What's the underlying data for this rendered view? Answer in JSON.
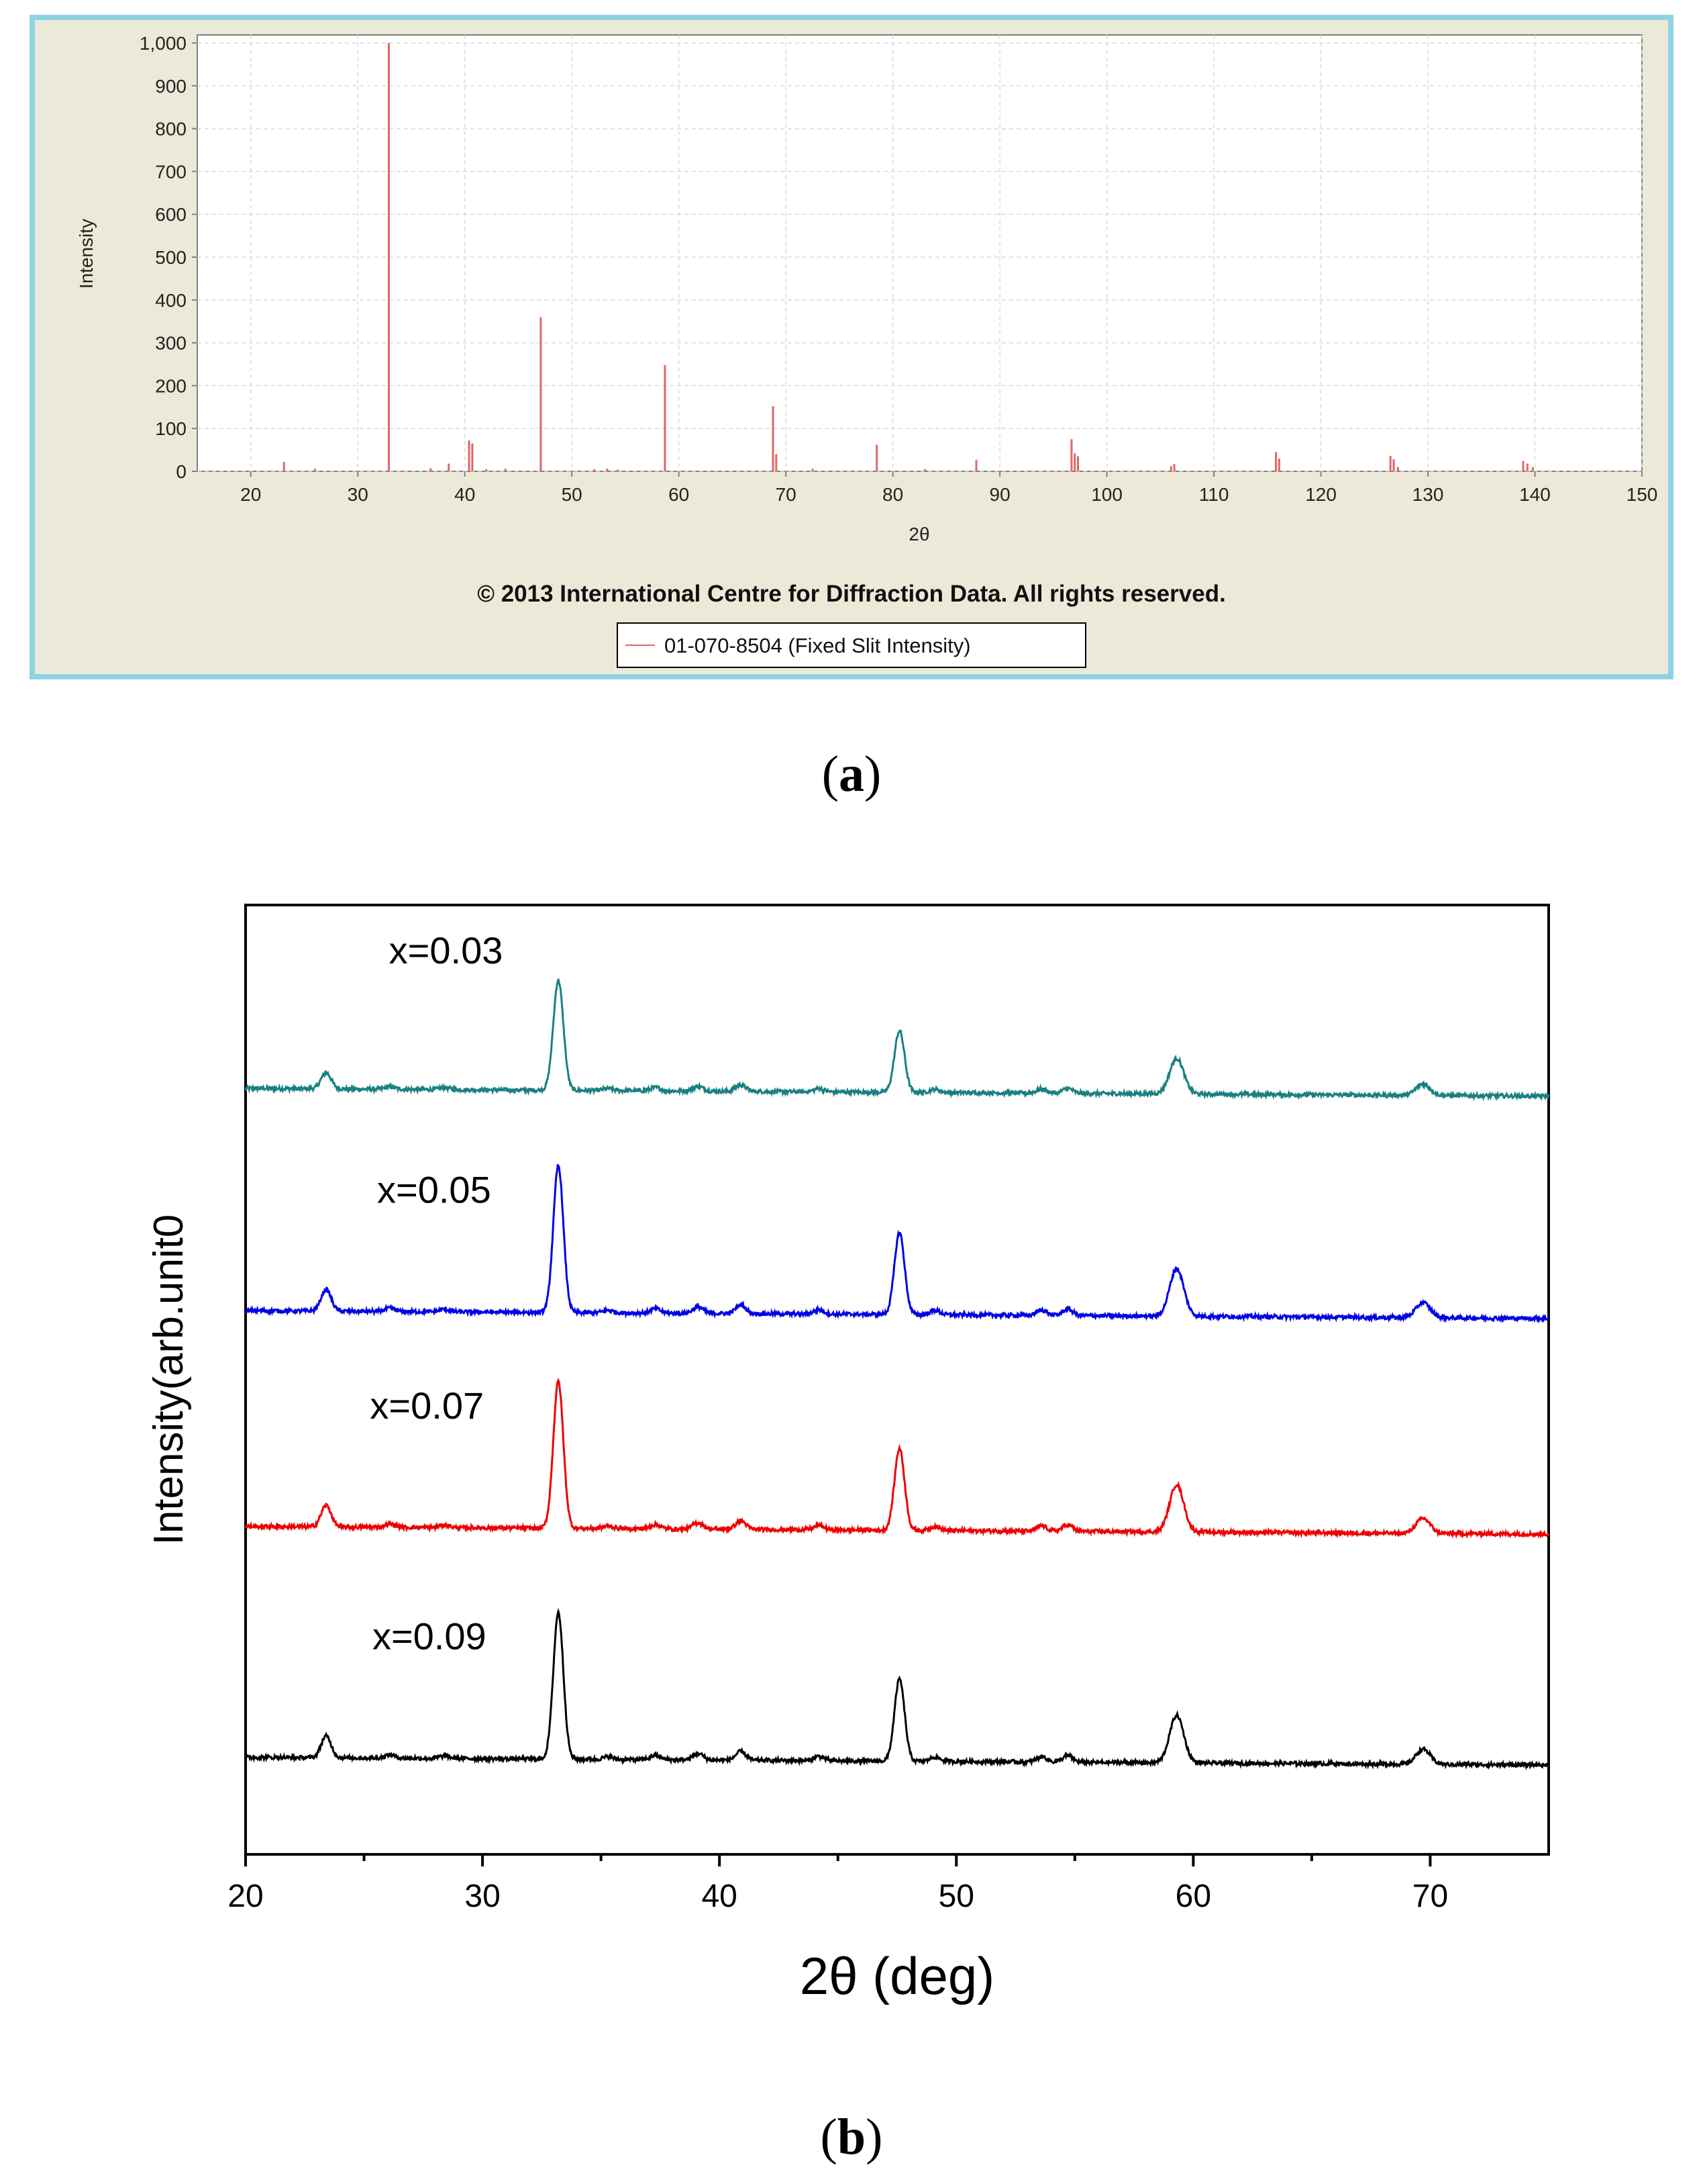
{
  "captions": {
    "a": "a",
    "b": "b"
  },
  "chart_data": [
    {
      "type": "bar",
      "panel": "a",
      "xlabel": "2θ",
      "ylabel": "Intensity",
      "xlim": [
        15,
        150
      ],
      "ylim": [
        0,
        1000
      ],
      "xticks": [
        20,
        30,
        40,
        50,
        60,
        70,
        80,
        90,
        100,
        110,
        120,
        130,
        140,
        150
      ],
      "yticks": [
        0,
        100,
        200,
        300,
        400,
        500,
        600,
        700,
        800,
        900,
        1000
      ],
      "ytick_labels": [
        "0",
        "100",
        "200",
        "300",
        "400",
        "500",
        "600",
        "700",
        "800",
        "900",
        "1,000"
      ],
      "grid": true,
      "footer": "© 2013 International Centre for Diffraction Data. All rights reserved.",
      "legend": {
        "label": "01-070-8504 (Fixed Slit Intensity)",
        "placement": "bottom-center",
        "color": "#e06666"
      },
      "color": "#e06666",
      "peaks": [
        {
          "x": 23.1,
          "y": 22
        },
        {
          "x": 26.0,
          "y": 6
        },
        {
          "x": 32.9,
          "y": 1000
        },
        {
          "x": 36.8,
          "y": 7
        },
        {
          "x": 38.5,
          "y": 18
        },
        {
          "x": 40.4,
          "y": 72
        },
        {
          "x": 40.7,
          "y": 65
        },
        {
          "x": 42.0,
          "y": 5
        },
        {
          "x": 43.8,
          "y": 6
        },
        {
          "x": 47.1,
          "y": 360
        },
        {
          "x": 52.1,
          "y": 5
        },
        {
          "x": 53.3,
          "y": 6
        },
        {
          "x": 54.3,
          "y": 4
        },
        {
          "x": 58.7,
          "y": 248
        },
        {
          "x": 68.8,
          "y": 152
        },
        {
          "x": 69.1,
          "y": 40
        },
        {
          "x": 72.5,
          "y": 6
        },
        {
          "x": 78.5,
          "y": 62
        },
        {
          "x": 83.0,
          "y": 5
        },
        {
          "x": 87.8,
          "y": 27
        },
        {
          "x": 96.7,
          "y": 75
        },
        {
          "x": 97.0,
          "y": 42
        },
        {
          "x": 97.3,
          "y": 35
        },
        {
          "x": 106.0,
          "y": 12
        },
        {
          "x": 106.3,
          "y": 17
        },
        {
          "x": 115.8,
          "y": 45
        },
        {
          "x": 116.1,
          "y": 30
        },
        {
          "x": 126.5,
          "y": 36
        },
        {
          "x": 126.8,
          "y": 28
        },
        {
          "x": 127.2,
          "y": 10
        },
        {
          "x": 138.9,
          "y": 24
        },
        {
          "x": 139.3,
          "y": 18
        },
        {
          "x": 139.8,
          "y": 10
        }
      ]
    },
    {
      "type": "line",
      "panel": "b",
      "xlabel": "2θ (deg)",
      "ylabel": "Intensity(arb.unit0",
      "xlim": [
        20,
        75
      ],
      "ylim": [
        0,
        4.4
      ],
      "xticks": [
        20,
        30,
        40,
        50,
        60,
        70
      ],
      "grid": false,
      "peak_profile": [
        {
          "x": 23.4,
          "h": 0.1
        },
        {
          "x": 26.1,
          "h": 0.015
        },
        {
          "x": 28.4,
          "h": 0.012
        },
        {
          "x": 33.2,
          "h": 0.68
        },
        {
          "x": 35.3,
          "h": 0.012
        },
        {
          "x": 37.3,
          "h": 0.02
        },
        {
          "x": 39.1,
          "h": 0.03
        },
        {
          "x": 40.9,
          "h": 0.04
        },
        {
          "x": 44.2,
          "h": 0.02
        },
        {
          "x": 47.6,
          "h": 0.38
        },
        {
          "x": 49.1,
          "h": 0.02
        },
        {
          "x": 53.6,
          "h": 0.025
        },
        {
          "x": 54.7,
          "h": 0.03
        },
        {
          "x": 59.3,
          "h": 0.22
        },
        {
          "x": 69.7,
          "h": 0.07
        }
      ],
      "series": [
        {
          "name": "x=0.03",
          "color": "#1a8080",
          "baseline": 3.55,
          "scale": 0.75
        },
        {
          "name": "x=0.05",
          "color": "#0000e6",
          "baseline": 2.52,
          "scale": 1.0
        },
        {
          "name": "x=0.07",
          "color": "#ee0000",
          "baseline": 1.52,
          "scale": 1.0
        },
        {
          "name": "x=0.09",
          "color": "#000000",
          "baseline": 0.45,
          "scale": 1.0
        }
      ]
    }
  ]
}
